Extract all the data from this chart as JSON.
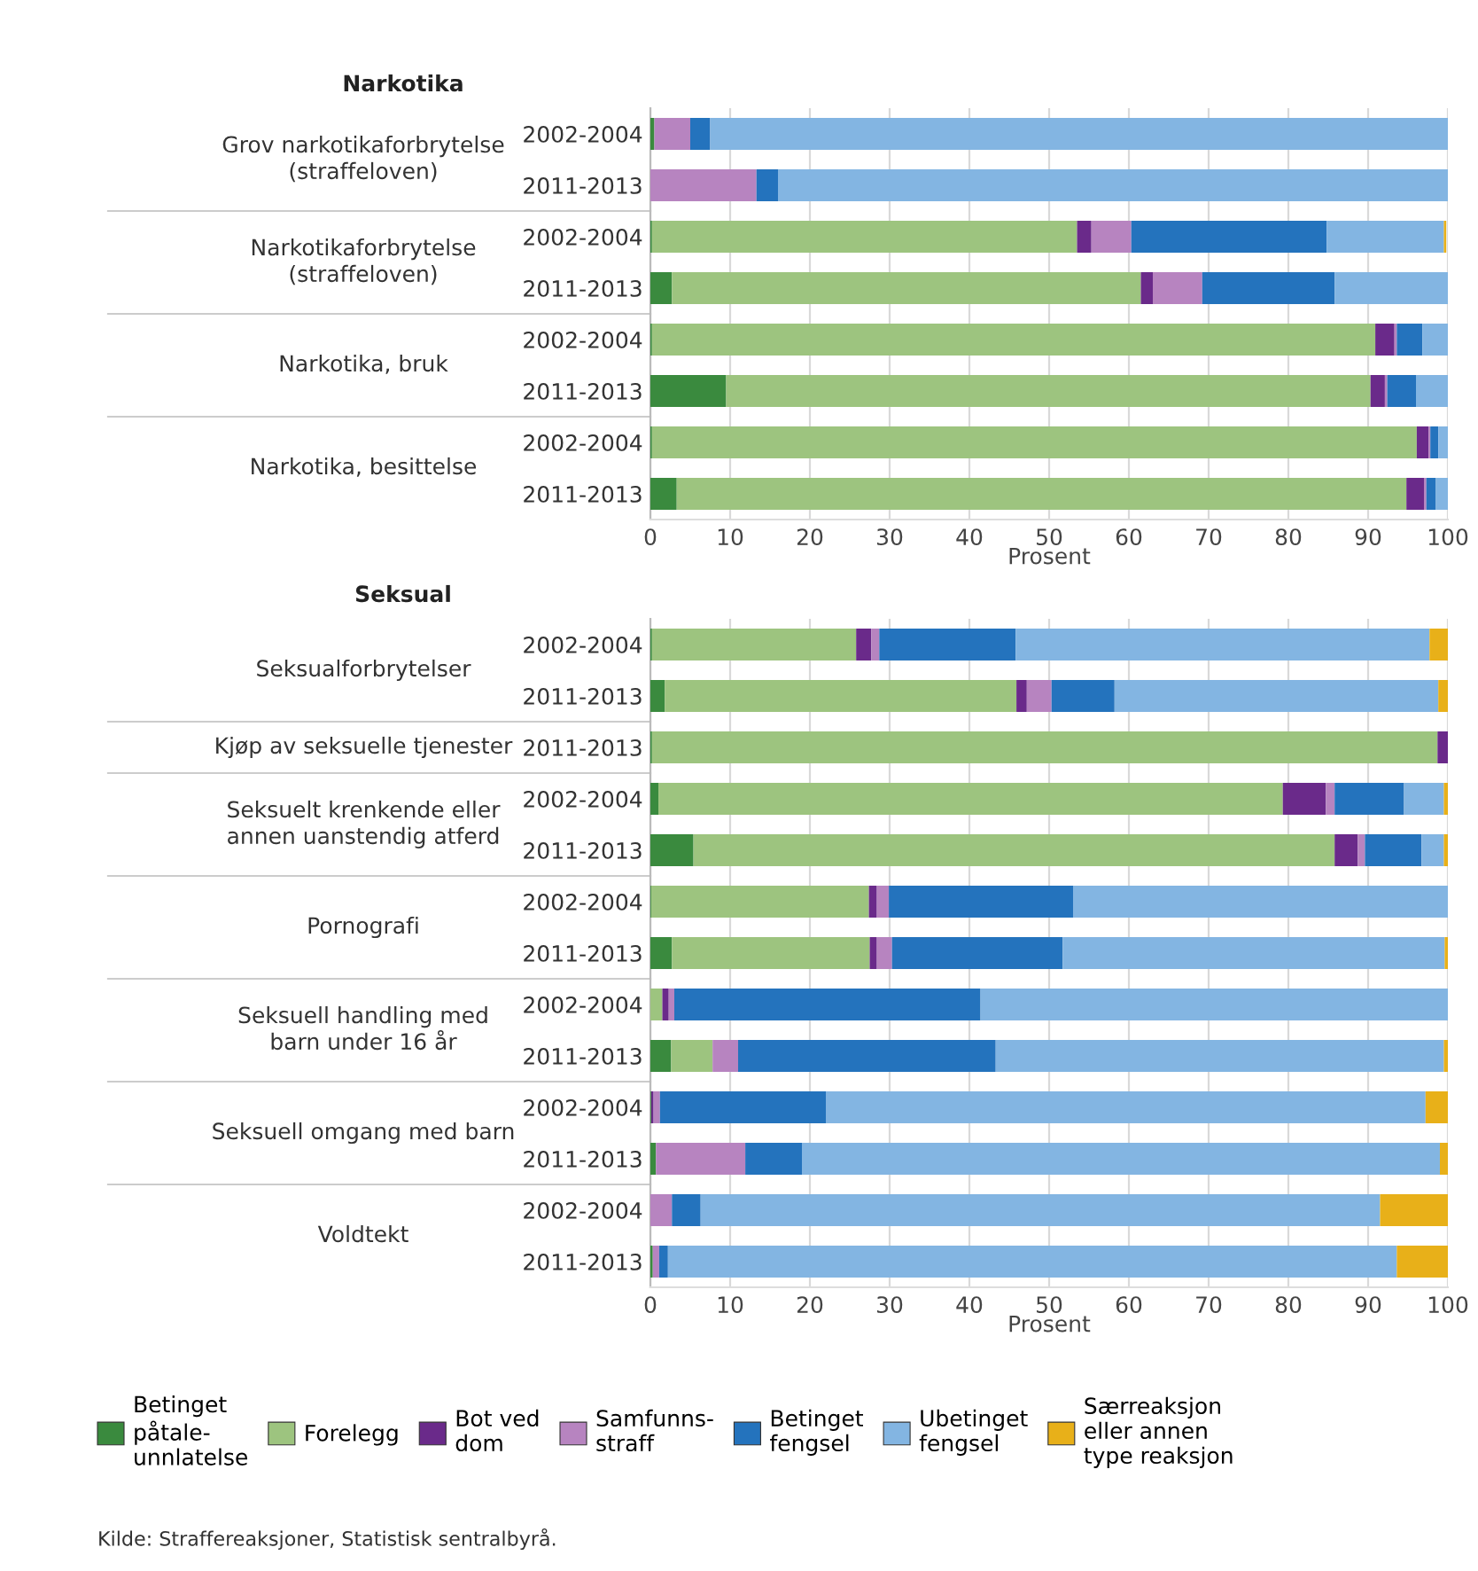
{
  "chart_data": [
    {
      "type": "bar",
      "orientation": "horizontal",
      "stacked": true,
      "title": "Narkotika",
      "xlabel": "Prosent",
      "categories": [
        "2002-2004",
        "2011-2013",
        "2002-2004",
        "2011-2013",
        "2002-2004",
        "2011-2013",
        "2002-2004",
        "2011-2013"
      ],
      "xlim": [
        0,
        100
      ],
      "xticks": [
        0,
        10,
        20,
        30,
        40,
        50,
        60,
        70,
        80,
        90,
        100
      ],
      "grid": "x",
      "annotations": [
        "Grov narkotikaforbrytelse\n(straffeloven)",
        "Narkotikaforbrytelse\n(straffeloven)",
        "Narkotika, bruk",
        "Narkotika, besittelse"
      ],
      "series": [
        {
          "color": "#3a8a3e",
          "values": [
            0.5,
            0,
            0.2,
            2.7,
            0.2,
            9.5,
            0.2,
            3.3
          ]
        },
        {
          "color": "#9dc47f",
          "values": [
            0,
            0,
            53.3,
            58.8,
            90.7,
            80.8,
            95.9,
            91.5
          ]
        },
        {
          "color": "#6a2a8a",
          "values": [
            0,
            0,
            1.8,
            1.5,
            2.4,
            1.8,
            1.5,
            2.2
          ]
        },
        {
          "color": "#b784c0",
          "values": [
            4.5,
            13.3,
            5,
            6.2,
            0.3,
            0.3,
            0.2,
            0.3
          ]
        },
        {
          "color": "#2473bd",
          "values": [
            2.5,
            2.7,
            24.5,
            16.6,
            3.2,
            3.6,
            1,
            1.2
          ]
        },
        {
          "color": "#83b5e2",
          "values": [
            92.5,
            84,
            14.7,
            14.2,
            3.2,
            4,
            1.2,
            1.5
          ]
        },
        {
          "color": "#e8b019",
          "values": [
            0,
            0,
            0.3,
            0,
            0,
            0,
            0,
            0
          ]
        }
      ]
    },
    {
      "type": "bar",
      "orientation": "horizontal",
      "stacked": true,
      "title": "Seksual",
      "xlabel": "Prosent",
      "categories": [
        "2002-2004",
        "2011-2013",
        "2011-2013",
        "2002-2004",
        "2011-2013",
        "2002-2004",
        "2011-2013",
        "2002-2004",
        "2011-2013",
        "2002-2004",
        "2011-2013",
        "2002-2004",
        "2011-2013"
      ],
      "xlim": [
        0,
        100
      ],
      "xticks": [
        0,
        10,
        20,
        30,
        40,
        50,
        60,
        70,
        80,
        90,
        100
      ],
      "grid": "x",
      "legend": "bottom",
      "annotations": [
        "Seksualforbrytelser",
        "Kjøp av seksuelle tjenester",
        "Seksuelt krenkende eller\nannen uanstendig atferd",
        "Pornografi",
        "Seksuell handling med\nbarn under 16 år",
        "Seksuell omgang med barn",
        "Voldtekt",
        "Kilde: Straffereaksjoner, Statistisk sentralbyrå."
      ],
      "series": [
        {
          "name": "Betinget\npåtale-\nunnlatelse",
          "color": "#3a8a3e",
          "values": [
            0.2,
            1.8,
            0.2,
            1,
            5.4,
            0.1,
            2.7,
            0,
            2.6,
            0.1,
            0.7,
            0,
            0.3
          ]
        },
        {
          "name": "Forelegg",
          "color": "#9dc47f",
          "values": [
            25.6,
            44.1,
            98.5,
            78.3,
            80.4,
            27.3,
            24.8,
            1.5,
            5.2,
            0,
            0,
            0,
            0
          ]
        },
        {
          "name": "Bot ved\ndom",
          "color": "#6a2a8a",
          "values": [
            1.9,
            1.3,
            1.3,
            5.4,
            2.9,
            1,
            0.9,
            0.8,
            0,
            0.3,
            0,
            0,
            0
          ]
        },
        {
          "name": "Samfunns-\nstraff",
          "color": "#b784c0",
          "values": [
            1,
            3.1,
            0,
            1.1,
            0.9,
            1.5,
            1.9,
            0.7,
            3.2,
            0.8,
            11.2,
            2.7,
            0.8
          ]
        },
        {
          "name": "Betinget\nfengsel",
          "color": "#2473bd",
          "values": [
            17.1,
            7.9,
            0,
            8.7,
            7.1,
            23.1,
            21.4,
            38.4,
            32.3,
            20.8,
            7.1,
            3.6,
            1.1
          ]
        },
        {
          "name": "Ubetinget\nfengsel",
          "color": "#83b5e2",
          "values": [
            51.9,
            40.6,
            0,
            5,
            2.8,
            47,
            47.9,
            58.6,
            56.2,
            75.2,
            80,
            85.2,
            91.4
          ]
        },
        {
          "name": "Særreaksjon\neller annen\ntype reaksjon",
          "color": "#e8b019",
          "values": [
            2.3,
            1.2,
            0,
            0.5,
            0.5,
            0,
            0.4,
            0,
            0.5,
            2.8,
            1,
            8.5,
            6.4
          ]
        }
      ]
    }
  ]
}
